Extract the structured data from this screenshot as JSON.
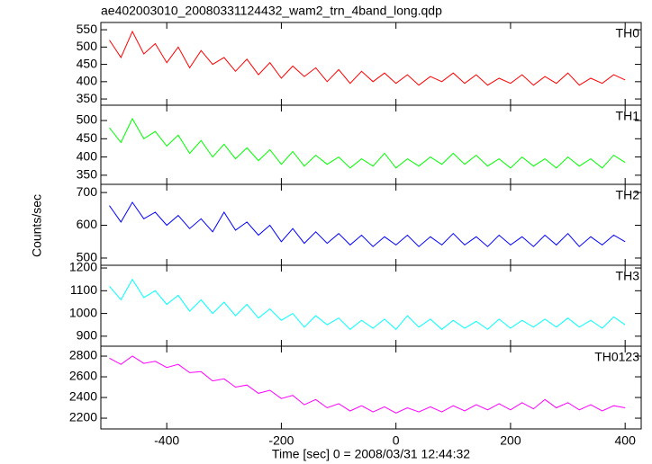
{
  "title": "ae402003010_20080331124432_wam2_trn_4band_long.qdp",
  "x_label": "Time [sec] 0 = 2008/03/31 12:44:32",
  "y_label": "Counts/sec",
  "chart_data": [
    {
      "type": "line",
      "label": "TH0",
      "color": "#ff0000",
      "x": [
        -500,
        -480,
        -460,
        -440,
        -420,
        -400,
        -380,
        -360,
        -340,
        -320,
        -300,
        -280,
        -260,
        -240,
        -220,
        -200,
        -180,
        -160,
        -140,
        -120,
        -100,
        -80,
        -60,
        -40,
        -20,
        0,
        20,
        40,
        60,
        80,
        100,
        120,
        140,
        160,
        180,
        200,
        220,
        240,
        260,
        280,
        300,
        320,
        340,
        360,
        380,
        400
      ],
      "values": [
        520,
        470,
        545,
        480,
        510,
        455,
        500,
        440,
        490,
        450,
        470,
        430,
        465,
        420,
        455,
        410,
        445,
        415,
        440,
        400,
        435,
        395,
        430,
        400,
        425,
        395,
        420,
        390,
        415,
        400,
        425,
        395,
        420,
        390,
        410,
        395,
        420,
        390,
        415,
        395,
        425,
        390,
        410,
        395,
        420,
        405
      ],
      "xlim": [
        -515,
        428
      ],
      "xticks": [
        -400,
        -200,
        0,
        200,
        400
      ],
      "ylim": [
        332,
        571
      ],
      "yticks": [
        350,
        400,
        450,
        500,
        550
      ]
    },
    {
      "type": "line",
      "label": "TH1",
      "color": "#00ff00",
      "x": [
        -500,
        -480,
        -460,
        -440,
        -420,
        -400,
        -380,
        -360,
        -340,
        -320,
        -300,
        -280,
        -260,
        -240,
        -220,
        -200,
        -180,
        -160,
        -140,
        -120,
        -100,
        -80,
        -60,
        -40,
        -20,
        0,
        20,
        40,
        60,
        80,
        100,
        120,
        140,
        160,
        180,
        200,
        220,
        240,
        260,
        280,
        300,
        320,
        340,
        360,
        380,
        400
      ],
      "values": [
        480,
        440,
        505,
        450,
        470,
        430,
        460,
        410,
        445,
        400,
        435,
        395,
        425,
        390,
        420,
        380,
        415,
        375,
        405,
        380,
        400,
        370,
        395,
        375,
        410,
        370,
        395,
        375,
        400,
        380,
        410,
        380,
        405,
        375,
        395,
        370,
        400,
        375,
        395,
        370,
        400,
        375,
        395,
        370,
        405,
        385
      ],
      "xlim": [
        -515,
        428
      ],
      "xticks": [
        -400,
        -200,
        0,
        200,
        400
      ],
      "ylim": [
        325,
        542
      ],
      "yticks": [
        350,
        400,
        450,
        500
      ]
    },
    {
      "type": "line",
      "label": "TH2",
      "color": "#0000ff",
      "x": [
        -500,
        -480,
        -460,
        -440,
        -420,
        -400,
        -380,
        -360,
        -340,
        -320,
        -300,
        -280,
        -260,
        -240,
        -220,
        -200,
        -180,
        -160,
        -140,
        -120,
        -100,
        -80,
        -60,
        -40,
        -20,
        0,
        20,
        40,
        60,
        80,
        100,
        120,
        140,
        160,
        180,
        200,
        220,
        240,
        260,
        280,
        300,
        320,
        340,
        360,
        380,
        400
      ],
      "values": [
        660,
        610,
        670,
        620,
        640,
        600,
        630,
        590,
        620,
        580,
        640,
        585,
        610,
        570,
        600,
        550,
        590,
        545,
        580,
        545,
        575,
        540,
        570,
        535,
        565,
        540,
        570,
        535,
        565,
        540,
        575,
        540,
        565,
        535,
        570,
        540,
        565,
        535,
        570,
        540,
        575,
        535,
        565,
        540,
        570,
        550
      ],
      "xlim": [
        -515,
        428
      ],
      "xticks": [
        -400,
        -200,
        0,
        200,
        400
      ],
      "ylim": [
        478,
        725
      ],
      "yticks": [
        500,
        600,
        700
      ]
    },
    {
      "type": "line",
      "label": "TH3",
      "color": "#00ffff",
      "x": [
        -500,
        -480,
        -460,
        -440,
        -420,
        -400,
        -380,
        -360,
        -340,
        -320,
        -300,
        -280,
        -260,
        -240,
        -220,
        -200,
        -180,
        -160,
        -140,
        -120,
        -100,
        -80,
        -60,
        -40,
        -20,
        0,
        20,
        40,
        60,
        80,
        100,
        120,
        140,
        160,
        180,
        200,
        220,
        240,
        260,
        280,
        300,
        320,
        340,
        360,
        380,
        400
      ],
      "values": [
        1120,
        1060,
        1150,
        1070,
        1100,
        1040,
        1080,
        1010,
        1060,
        1000,
        1050,
        990,
        1040,
        980,
        1020,
        970,
        1000,
        940,
        990,
        950,
        980,
        930,
        970,
        935,
        975,
        930,
        990,
        940,
        975,
        930,
        970,
        935,
        965,
        930,
        975,
        935,
        970,
        940,
        975,
        940,
        980,
        940,
        970,
        935,
        985,
        950
      ],
      "xlim": [
        -515,
        428
      ],
      "xticks": [
        -400,
        -200,
        0,
        200,
        400
      ],
      "ylim": [
        856,
        1212
      ],
      "yticks": [
        900,
        1000,
        1100,
        1200
      ]
    },
    {
      "type": "line",
      "label": "TH0123",
      "color": "#ff00ff",
      "x": [
        -500,
        -480,
        -460,
        -440,
        -420,
        -400,
        -380,
        -360,
        -340,
        -320,
        -300,
        -280,
        -260,
        -240,
        -220,
        -200,
        -180,
        -160,
        -140,
        -120,
        -100,
        -80,
        -60,
        -40,
        -20,
        0,
        20,
        40,
        60,
        80,
        100,
        120,
        140,
        160,
        180,
        200,
        220,
        240,
        260,
        280,
        300,
        320,
        340,
        360,
        380,
        400
      ],
      "values": [
        2780,
        2720,
        2800,
        2730,
        2750,
        2690,
        2720,
        2640,
        2650,
        2560,
        2580,
        2500,
        2520,
        2440,
        2470,
        2390,
        2420,
        2330,
        2380,
        2300,
        2340,
        2270,
        2320,
        2260,
        2310,
        2250,
        2300,
        2260,
        2310,
        2260,
        2320,
        2270,
        2330,
        2280,
        2340,
        2280,
        2350,
        2290,
        2380,
        2300,
        2350,
        2280,
        2330,
        2270,
        2320,
        2300
      ],
      "xlim": [
        -515,
        428
      ],
      "xticks": [
        -400,
        -200,
        0,
        200,
        400
      ],
      "ylim": [
        2096,
        2896
      ],
      "yticks": [
        2200,
        2400,
        2600,
        2800
      ]
    }
  ]
}
